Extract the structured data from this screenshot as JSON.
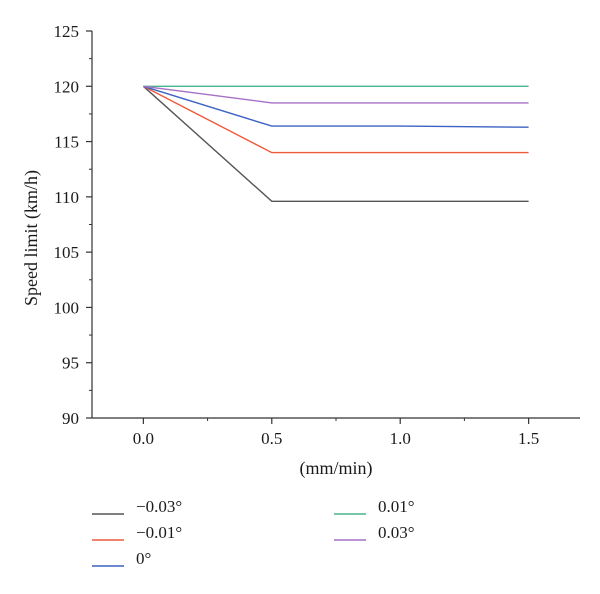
{
  "chart_data": {
    "type": "line",
    "title": "",
    "xlabel": "(mm/min)",
    "ylabel": "Speed limit (km/h)",
    "xlim": [
      -0.2,
      1.7
    ],
    "ylim": [
      90,
      125
    ],
    "x_ticks": [
      0.0,
      0.5,
      1.0,
      1.5
    ],
    "x_tick_labels": [
      "0.0",
      "0.5",
      "1.0",
      "1.5"
    ],
    "y_ticks": [
      90,
      95,
      100,
      105,
      110,
      115,
      120,
      125
    ],
    "y_tick_labels": [
      "90",
      "95",
      "100",
      "105",
      "110",
      "115",
      "120",
      "125"
    ],
    "grid": false,
    "legend_position": "bottom",
    "series": [
      {
        "name": "−0.03°",
        "color": "#555555",
        "x": [
          0.0,
          0.5,
          1.0,
          1.5
        ],
        "values": [
          120.0,
          109.6,
          109.6,
          109.6
        ]
      },
      {
        "name": "−0.01°",
        "color": "#ee5a3a",
        "x": [
          0.0,
          0.5,
          1.0,
          1.5
        ],
        "values": [
          120.0,
          114.0,
          114.0,
          114.0
        ]
      },
      {
        "name": "0°",
        "color": "#3d62c4",
        "x": [
          0.0,
          0.5,
          1.0,
          1.5
        ],
        "values": [
          120.0,
          116.4,
          116.4,
          116.3
        ]
      },
      {
        "name": "0.01°",
        "color": "#48b48c",
        "x": [
          0.0,
          0.5,
          1.0,
          1.5
        ],
        "values": [
          120.0,
          120.0,
          120.0,
          120.0
        ]
      },
      {
        "name": "0.03°",
        "color": "#a670c8",
        "x": [
          0.0,
          0.5,
          1.0,
          1.5
        ],
        "values": [
          120.0,
          118.5,
          118.5,
          118.5
        ]
      }
    ]
  }
}
